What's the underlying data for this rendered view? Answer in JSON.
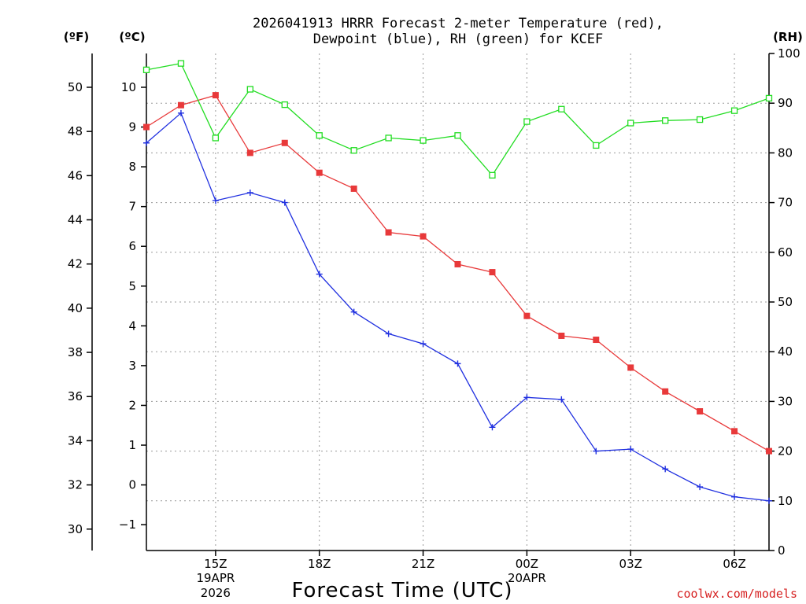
{
  "chart_data": {
    "type": "line",
    "title_line1": "2026041913 HRRR Forecast 2-meter Temperature (red),",
    "title_line2": "Dewpoint (blue), RH (green) for KCEF",
    "xlabel": "Forecast Time (UTC)",
    "unit_labels": {
      "fahrenheit": "(ºF)",
      "celsius": "(ºC)",
      "rh": "(RH)"
    },
    "credit": "coolwx.com/models",
    "x_hours": [
      13,
      14,
      15,
      16,
      17,
      18,
      19,
      20,
      21,
      22,
      23,
      24,
      25,
      26,
      27,
      28,
      29,
      30,
      31
    ],
    "xlim": [
      13,
      31
    ],
    "x_ticks": [
      {
        "hour": 15,
        "label": "15Z",
        "sub1": "19APR",
        "sub2": "2026"
      },
      {
        "hour": 18,
        "label": "18Z"
      },
      {
        "hour": 21,
        "label": "21Z"
      },
      {
        "hour": 24,
        "label": "00Z",
        "sub1": "20APR"
      },
      {
        "hour": 27,
        "label": "03Z"
      },
      {
        "hour": 30,
        "label": "06Z"
      }
    ],
    "left_axis_celsius": {
      "range": [
        -1.65,
        10.85
      ],
      "ticks": [
        -1,
        0,
        1,
        2,
        3,
        4,
        5,
        6,
        7,
        8,
        9,
        10
      ],
      "labels": [
        "−1",
        "0",
        "1",
        "2",
        "3",
        "4",
        "5",
        "6",
        "7",
        "8",
        "9",
        "10"
      ]
    },
    "left_axis_fahrenheit": {
      "ticks": [
        30,
        32,
        34,
        36,
        38,
        40,
        42,
        44,
        46,
        48,
        50
      ],
      "labels": [
        "30",
        "32",
        "34",
        "36",
        "38",
        "40",
        "42",
        "44",
        "46",
        "48",
        "50"
      ]
    },
    "right_axis_rh": {
      "range": [
        0,
        100
      ],
      "ticks": [
        0,
        10,
        20,
        30,
        40,
        50,
        60,
        70,
        80,
        90,
        100
      ],
      "labels": [
        "0",
        "10",
        "20",
        "30",
        "40",
        "50",
        "60",
        "70",
        "80",
        "90",
        "100"
      ]
    },
    "series": [
      {
        "name": "Temperature",
        "unit": "C",
        "color": "#e8393a",
        "marker": "filled-square",
        "values": [
          9.0,
          9.55,
          9.8,
          8.35,
          8.6,
          7.85,
          7.45,
          6.35,
          6.25,
          5.55,
          5.35,
          4.25,
          3.75,
          3.65,
          2.95,
          2.35,
          1.85,
          1.35,
          0.85
        ]
      },
      {
        "name": "Dewpoint",
        "unit": "C",
        "color": "#2030e0",
        "marker": "plus",
        "values": [
          8.6,
          9.35,
          7.15,
          7.35,
          7.1,
          5.3,
          4.35,
          3.8,
          3.55,
          3.05,
          1.45,
          2.2,
          2.15,
          0.85,
          0.9,
          0.4,
          -0.05,
          -0.3,
          -0.4
        ]
      },
      {
        "name": "RH",
        "unit": "%",
        "color": "#22dd22",
        "marker": "open-square",
        "values": [
          96.7,
          98.0,
          83.0,
          92.8,
          89.7,
          83.5,
          80.5,
          83.0,
          82.5,
          83.5,
          75.5,
          86.3,
          88.8,
          81.5,
          86.0,
          86.5,
          86.7,
          88.5,
          91.0
        ]
      }
    ]
  }
}
